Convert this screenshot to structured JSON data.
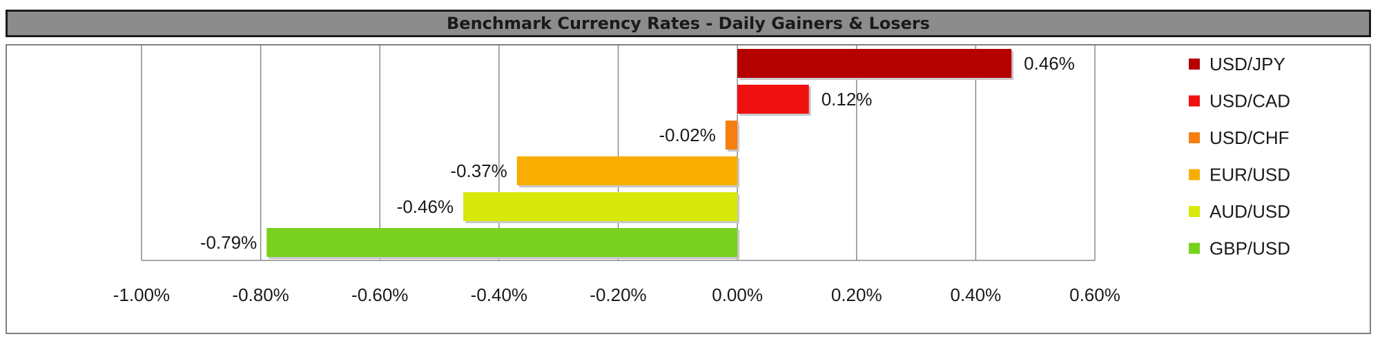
{
  "chart_data": {
    "type": "bar",
    "orientation": "horizontal",
    "title": "Benchmark Currency Rates - Daily Gainers & Losers",
    "categories": [
      "USD/JPY",
      "USD/CAD",
      "USD/CHF",
      "EUR/USD",
      "AUD/USD",
      "GBP/USD"
    ],
    "values": [
      0.46,
      0.12,
      -0.02,
      -0.37,
      -0.46,
      -0.79
    ],
    "value_labels": [
      "0.46%",
      "0.12%",
      "-0.02%",
      "-0.37%",
      "-0.46%",
      "-0.79%"
    ],
    "colors": [
      "#b50000",
      "#f01010",
      "#f57f0f",
      "#f7ae00",
      "#d8e80a",
      "#78d11e"
    ],
    "xlim": [
      -1.0,
      0.6
    ],
    "x_ticks": [
      -1.0,
      -0.8,
      -0.6,
      -0.4,
      -0.2,
      0.0,
      0.2,
      0.4,
      0.6
    ],
    "x_tick_labels": [
      "-1.00%",
      "-0.80%",
      "-0.60%",
      "-0.40%",
      "-0.20%",
      "0.00%",
      "0.20%",
      "0.40%",
      "0.60%"
    ],
    "grid": "vertical",
    "legend": {
      "placement": "right",
      "entries": [
        "USD/JPY",
        "USD/CAD",
        "USD/CHF",
        "EUR/USD",
        "AUD/USD",
        "GBP/USD"
      ]
    }
  }
}
